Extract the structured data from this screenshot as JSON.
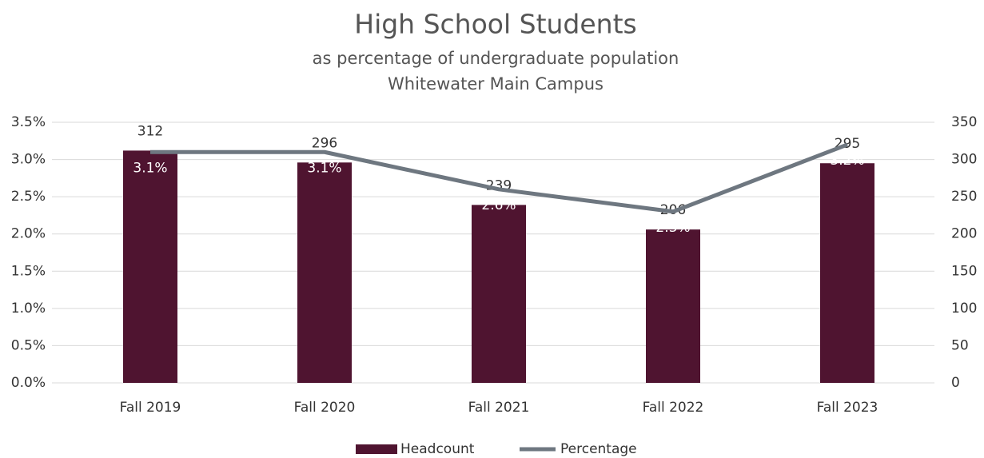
{
  "chart_data": {
    "type": "bar_line",
    "title": "High School Students",
    "subtitle": [
      "as percentage of undergraduate population",
      "Whitewater Main Campus"
    ],
    "categories": [
      "Fall 2019",
      "Fall 2020",
      "Fall 2021",
      "Fall 2022",
      "Fall 2023"
    ],
    "series": [
      {
        "name": "Headcount",
        "type": "bar",
        "axis": "y2",
        "color": "#4f1430",
        "values": [
          312,
          296,
          239,
          206,
          295
        ]
      },
      {
        "name": "Percentage",
        "type": "line",
        "axis": "y",
        "color": "#6e7780",
        "values": [
          3.1,
          3.1,
          2.6,
          2.3,
          3.2
        ],
        "value_labels": [
          "3.1%",
          "3.1%",
          "2.6%",
          "2.3%",
          "3.2%"
        ]
      }
    ],
    "ylim": [
      0,
      3.5
    ],
    "yticks": [
      {
        "value": 0,
        "label": "0.0%"
      },
      {
        "value": 0.5,
        "label": "0.5%"
      },
      {
        "value": 1,
        "label": "1.0%"
      },
      {
        "value": 1.5,
        "label": "1.5%"
      },
      {
        "value": 2,
        "label": "2.0%"
      },
      {
        "value": 2.5,
        "label": "2.5%"
      },
      {
        "value": 3,
        "label": "3.0%"
      },
      {
        "value": 3.5,
        "label": "3.5%"
      }
    ],
    "y2lim": [
      0,
      350
    ],
    "y2ticks": [
      0,
      50,
      100,
      150,
      200,
      250,
      300,
      350
    ],
    "grid": true,
    "legend": "bottom"
  }
}
